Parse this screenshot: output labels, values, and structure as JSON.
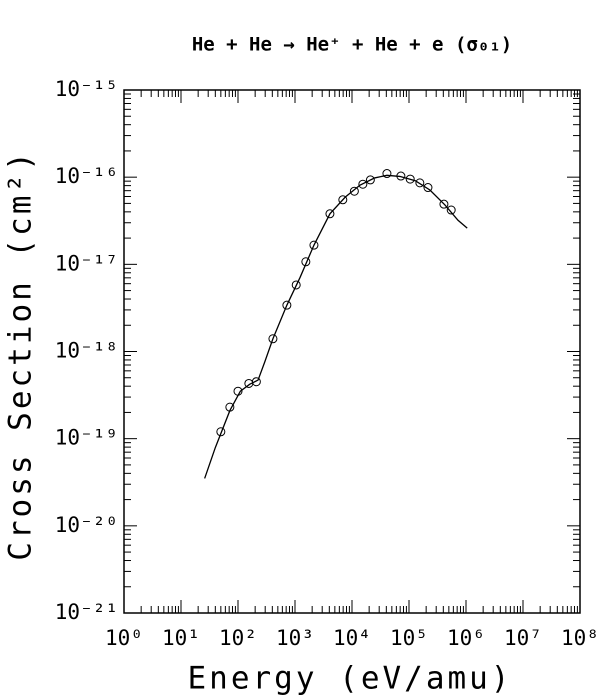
{
  "chart_data": {
    "type": "scatter",
    "title": "He + He → He⁺ + He + e (σ₀₁)",
    "xlabel": "Energy (eV/amu)",
    "ylabel": "Cross Section (cm²)",
    "xscale": "log",
    "yscale": "log",
    "xlim": [
      1,
      100000000
    ],
    "ylim": [
      1e-21,
      1e-15
    ],
    "xticks": [
      {
        "value": 1,
        "label": "10⁰"
      },
      {
        "value": 10,
        "label": "10¹"
      },
      {
        "value": 100,
        "label": "10²"
      },
      {
        "value": 1000,
        "label": "10³"
      },
      {
        "value": 10000,
        "label": "10⁴"
      },
      {
        "value": 100000,
        "label": "10⁵"
      },
      {
        "value": 1000000,
        "label": "10⁶"
      },
      {
        "value": 10000000,
        "label": "10⁷"
      },
      {
        "value": 100000000,
        "label": "10⁸"
      }
    ],
    "yticks": [
      {
        "value": 1e-21,
        "label": "10⁻²¹"
      },
      {
        "value": 1e-20,
        "label": "10⁻²⁰"
      },
      {
        "value": 1e-19,
        "label": "10⁻¹⁹"
      },
      {
        "value": 1e-18,
        "label": "10⁻¹⁸"
      },
      {
        "value": 1e-17,
        "label": "10⁻¹⁷"
      },
      {
        "value": 1e-16,
        "label": "10⁻¹⁶"
      },
      {
        "value": 1e-15,
        "label": "10⁻¹⁵"
      }
    ],
    "series": [
      {
        "style": "markers",
        "color": "#000000",
        "x": [
          50,
          72,
          100,
          155,
          210,
          410,
          720,
          1050,
          1550,
          2150,
          4100,
          6900,
          11000,
          15500,
          21000,
          41000,
          72000,
          105000,
          155000,
          215000,
          410000,
          550000
        ],
        "values": [
          1.2e-19,
          2.3e-19,
          3.5e-19,
          4.3e-19,
          4.5e-19,
          1.4e-18,
          3.4e-18,
          5.8e-18,
          1.07e-17,
          1.66e-17,
          3.8e-17,
          5.5e-17,
          6.9e-17,
          8.3e-17,
          9.3e-17,
          1.1e-16,
          1.03e-16,
          9.5e-17,
          8.6e-17,
          7.6e-17,
          4.9e-17,
          4.2e-17
        ]
      },
      {
        "style": "line",
        "color": "#000000",
        "x": [
          26,
          40,
          72,
          110,
          160,
          225,
          295,
          410,
          720,
          1230,
          2150,
          4100,
          7600,
          13800,
          25000,
          41000,
          69000,
          129000,
          234000,
          427000,
          724000,
          1050000
        ],
        "values": [
          3.5e-20,
          7.9e-20,
          2.1e-19,
          3.5e-19,
          4.2e-19,
          4.7e-19,
          7.6e-19,
          1.4e-18,
          3.4e-18,
          7.1e-18,
          1.66e-17,
          3.8e-17,
          5.9e-17,
          8.1e-17,
          9.8e-17,
          1.05e-16,
          1.02e-16,
          9.1e-17,
          7.1e-17,
          4.8e-17,
          3.2e-17,
          2.6e-17
        ]
      }
    ]
  }
}
